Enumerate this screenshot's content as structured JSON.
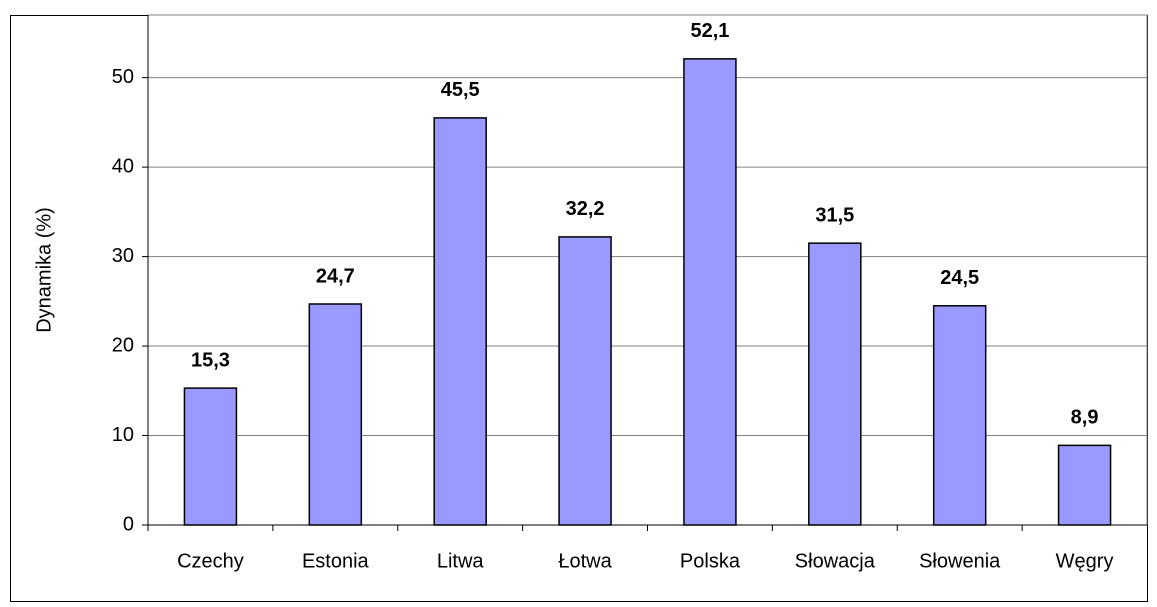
{
  "chart_data": {
    "type": "bar",
    "y_label": "Dynamika (%)",
    "categories": [
      "Czechy",
      "Estonia",
      "Litwa",
      "Łotwa",
      "Polska",
      "Słowacja",
      "Słowenia",
      "Węgry"
    ],
    "values": [
      15.3,
      24.7,
      45.5,
      32.2,
      52.1,
      31.5,
      24.5,
      8.9
    ],
    "value_labels": [
      "15,3",
      "24,7",
      "45,5",
      "32,2",
      "52,1",
      "31,5",
      "24,5",
      "8,9"
    ],
    "color": "#9999ff",
    "ylim": [
      0,
      57
    ],
    "yticks": [
      0,
      10,
      20,
      30,
      40,
      50
    ],
    "grid": true
  }
}
